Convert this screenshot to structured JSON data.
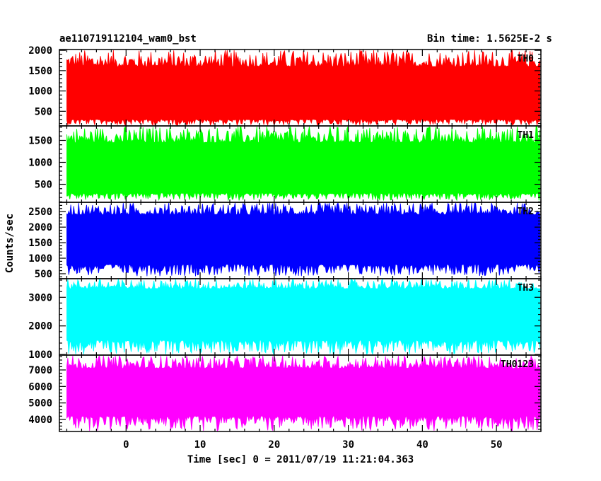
{
  "chart_data": {
    "type": "line",
    "title": "ae110719112104_wam0_bst",
    "subtitle": "Bin time: 1.5625E-2 s",
    "xlabel": "Time [sec] 0 = 2011/07/19 11:21:04.363",
    "ylabel": "Counts/sec",
    "xlim": [
      -9,
      56
    ],
    "x_data_range": [
      -8,
      56
    ],
    "xticks": [
      0,
      10,
      20,
      30,
      40,
      50
    ],
    "x_minor_step": 2,
    "grid": false,
    "panels": [
      {
        "name": "TH0",
        "color": "#ff0000",
        "ylim": [
          140,
          2020
        ],
        "yticks": [
          500,
          1000,
          1500,
          2000
        ],
        "y_minor_step": 100,
        "mean": 960,
        "low": [
          150,
          300
        ],
        "high": [
          1600,
          2020
        ]
      },
      {
        "name": "TH1",
        "color": "#00ff00",
        "ylim": [
          90,
          1830
        ],
        "yticks": [
          500,
          1000,
          1500
        ],
        "y_minor_step": 100,
        "mean": 900,
        "low": [
          130,
          300
        ],
        "high": [
          1450,
          1830
        ]
      },
      {
        "name": "TH2",
        "color": "#0000ff",
        "ylim": [
          340,
          2800
        ],
        "yticks": [
          500,
          1000,
          1500,
          2000,
          2500
        ],
        "y_minor_step": 100,
        "mean": 1600,
        "low": [
          420,
          800
        ],
        "high": [
          2400,
          2800
        ]
      },
      {
        "name": "TH3",
        "color": "#00ffff",
        "ylim": [
          980,
          3650
        ],
        "yticks": [
          1000,
          2000,
          3000
        ],
        "y_minor_step": 200,
        "mean": 2500,
        "low": [
          1000,
          1500
        ],
        "high": [
          3300,
          3650
        ]
      },
      {
        "name": "TH0123",
        "color": "#ff00ff",
        "ylim": [
          3270,
          7900
        ],
        "yticks": [
          4000,
          5000,
          6000,
          7000
        ],
        "y_minor_step": 200,
        "mean": 5800,
        "low": [
          3300,
          4200
        ],
        "high": [
          7100,
          7900
        ]
      }
    ]
  }
}
